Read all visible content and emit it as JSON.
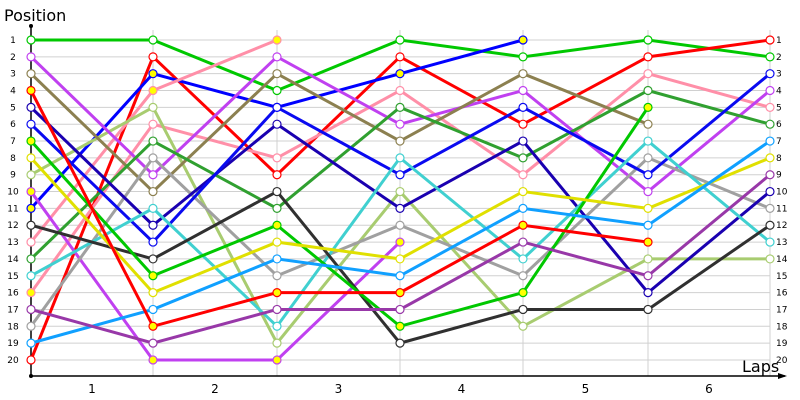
{
  "chart_data": {
    "type": "line",
    "title": "",
    "ylabel": "Position",
    "xlabel": "Laps",
    "x_ticks": [
      "1",
      "2",
      "3",
      "4",
      "5",
      "6"
    ],
    "y_ticks": [
      1,
      2,
      3,
      4,
      5,
      6,
      7,
      8,
      9,
      10,
      11,
      12,
      13,
      14,
      15,
      16,
      17,
      18,
      19,
      20
    ],
    "ylim": [
      1,
      20
    ],
    "y_inverted": true,
    "grid": true,
    "right_labels": [
      1,
      2,
      3,
      4,
      5,
      6,
      7,
      8,
      9,
      10,
      11,
      12,
      13,
      14,
      15,
      16,
      17,
      18,
      19,
      20
    ],
    "series": [
      {
        "name": "green",
        "color": "#00c800",
        "values": [
          1,
          1,
          4,
          1,
          2,
          1,
          2
        ],
        "fills": [
          "w",
          "w",
          "w",
          "w",
          "w",
          "w",
          "w"
        ]
      },
      {
        "name": "red",
        "color": "#ff0000",
        "values": [
          20,
          2,
          9,
          2,
          6,
          2,
          1
        ],
        "fills": [
          "w",
          "w",
          "w",
          "w",
          "w",
          "w",
          "w"
        ]
      },
      {
        "name": "blue-a",
        "color": "#0000ff",
        "values": [
          11,
          3,
          5,
          3,
          1
        ],
        "fills": [
          "y",
          "y",
          "w",
          "y",
          "y"
        ]
      },
      {
        "name": "pink-a",
        "color": "#ff8fa8",
        "values": [
          13,
          4,
          1
        ],
        "fills": [
          "w",
          "y",
          "y"
        ]
      },
      {
        "name": "pink-b",
        "color": "#ff8fa8",
        "values": [
          16,
          6,
          8,
          4,
          9,
          3,
          5
        ],
        "fills": [
          "y",
          "w",
          "w",
          "w",
          "w",
          "w",
          "w"
        ]
      },
      {
        "name": "light-green",
        "color": "#a8cc70",
        "values": [
          9,
          5,
          19,
          10,
          18,
          14,
          14
        ],
        "fills": [
          "w",
          "w",
          "w",
          "w",
          "w",
          "w",
          "w"
        ]
      },
      {
        "name": "magenta-a",
        "color": "#c040f0",
        "values": [
          2,
          9,
          2,
          6,
          4,
          10,
          4
        ],
        "fills": [
          "w",
          "w",
          "w",
          "w",
          "w",
          "w",
          "w"
        ]
      },
      {
        "name": "magenta-b",
        "color": "#c040f0",
        "values": [
          10,
          20,
          20,
          13
        ],
        "fills": [
          "y",
          "y",
          "y",
          "y"
        ]
      },
      {
        "name": "olive",
        "color": "#8c8050",
        "values": [
          3,
          10,
          3,
          7,
          3,
          6
        ],
        "fills": [
          "w",
          "w",
          "w",
          "w",
          "w",
          "w"
        ]
      },
      {
        "name": "dark-green",
        "color": "#30a030",
        "values": [
          14,
          7,
          11,
          5,
          8,
          4,
          6
        ],
        "fills": [
          "w",
          "w",
          "w",
          "w",
          "w",
          "w",
          "w"
        ]
      },
      {
        "name": "gray",
        "color": "#a0a0a0",
        "values": [
          18,
          8,
          15,
          12,
          15,
          8,
          11
        ],
        "fills": [
          "w",
          "w",
          "w",
          "w",
          "w",
          "w",
          "w"
        ]
      },
      {
        "name": "navy",
        "color": "#1a00b0",
        "values": [
          5,
          12,
          6,
          11,
          7,
          16,
          10
        ],
        "fills": [
          "w",
          "w",
          "w",
          "w",
          "w",
          "w",
          "w"
        ]
      },
      {
        "name": "blue-b",
        "color": "#0a0af0",
        "values": [
          6,
          13,
          5,
          9,
          5,
          9,
          3
        ],
        "fills": [
          "w",
          "w",
          "w",
          "w",
          "w",
          "w",
          "w"
        ]
      },
      {
        "name": "cyan",
        "color": "#40d0d0",
        "values": [
          15,
          11,
          18,
          8,
          14,
          7,
          13
        ],
        "fills": [
          "w",
          "w",
          "w",
          "w",
          "w",
          "w",
          "w"
        ]
      },
      {
        "name": "black",
        "color": "#303030",
        "values": [
          12,
          14,
          10,
          19,
          17,
          17,
          12
        ],
        "fills": [
          "w",
          "w",
          "w",
          "w",
          "w",
          "w",
          "w"
        ]
      },
      {
        "name": "green-b",
        "color": "#00c800",
        "values": [
          7,
          15,
          12,
          18,
          16,
          5
        ],
        "fills": [
          "y",
          "y",
          "y",
          "y",
          "y",
          "y"
        ]
      },
      {
        "name": "yellow",
        "color": "#e0e000",
        "values": [
          8,
          16,
          13,
          14,
          10,
          11,
          8
        ],
        "fills": [
          "w",
          "w",
          "w",
          "w",
          "w",
          "w",
          "w"
        ]
      },
      {
        "name": "sky-blue",
        "color": "#10a0ff",
        "values": [
          19,
          17,
          14,
          15,
          11,
          12,
          7
        ],
        "fills": [
          "w",
          "w",
          "w",
          "w",
          "w",
          "w",
          "w"
        ]
      },
      {
        "name": "red-b",
        "color": "#ff0000",
        "values": [
          4,
          18,
          16,
          16,
          12,
          13
        ],
        "fills": [
          "y",
          "y",
          "y",
          "y",
          "y",
          "y"
        ]
      },
      {
        "name": "purple",
        "color": "#9838a8",
        "values": [
          17,
          19,
          17,
          17,
          13,
          15,
          9
        ],
        "fills": [
          "w",
          "w",
          "w",
          "w",
          "w",
          "w",
          "w"
        ]
      }
    ]
  }
}
